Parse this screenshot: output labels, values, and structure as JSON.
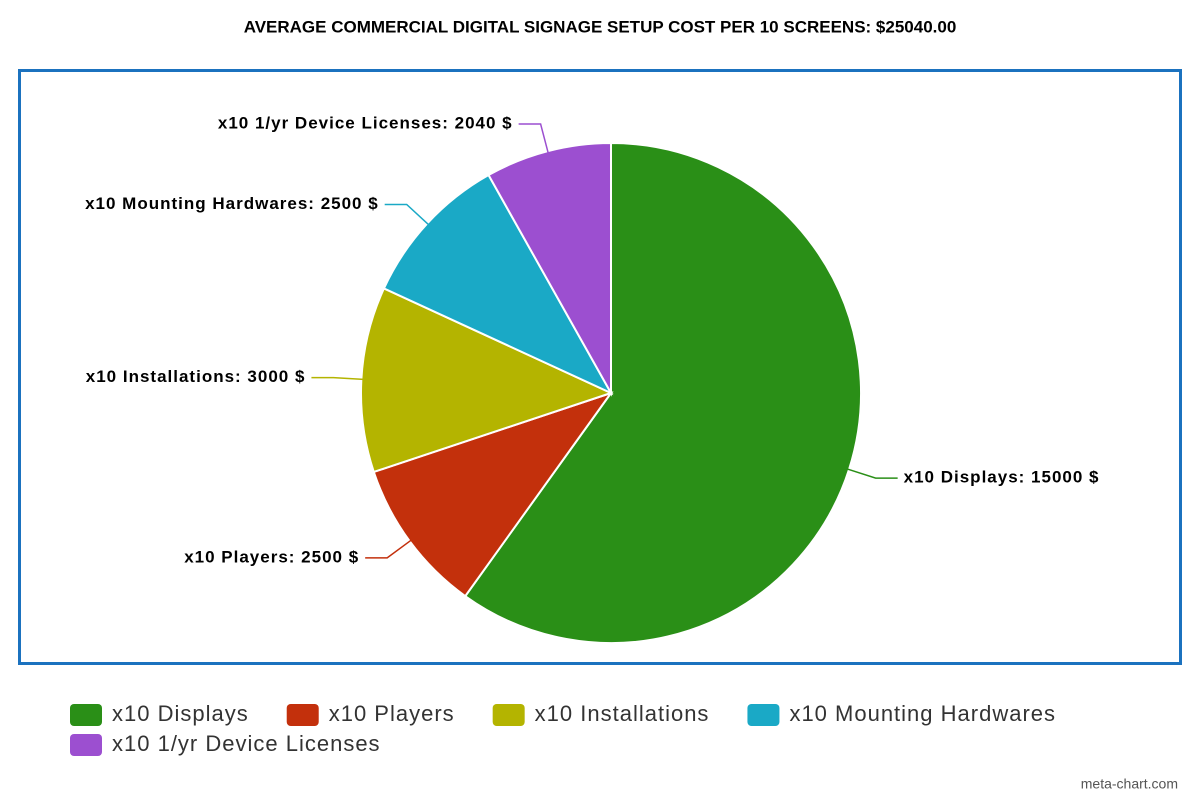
{
  "chart_data": {
    "type": "pie",
    "title": "AVERAGE COMMERCIAL DIGITAL SIGNAGE SETUP COST PER 10 SCREENS: $25040.00",
    "categories": [
      "x10 Displays",
      "x10 Players",
      "x10 Installations",
      "x10 Mounting Hardwares",
      "x10 1/yr Device Licenses"
    ],
    "values": [
      15000,
      2500,
      3000,
      2500,
      2040
    ],
    "value_labels": [
      "x10 Displays: 15000 $",
      "x10 Players: 2500 $",
      "x10 Installations: 3000 $",
      "x10 Mounting Hardwares: 2500 $",
      "x10 1/yr Device Licenses: 2040 $"
    ],
    "colors": [
      "#2a8f17",
      "#c3300c",
      "#b4b400",
      "#1aa9c6",
      "#9c4fd0"
    ],
    "credit": "meta-chart.com"
  }
}
